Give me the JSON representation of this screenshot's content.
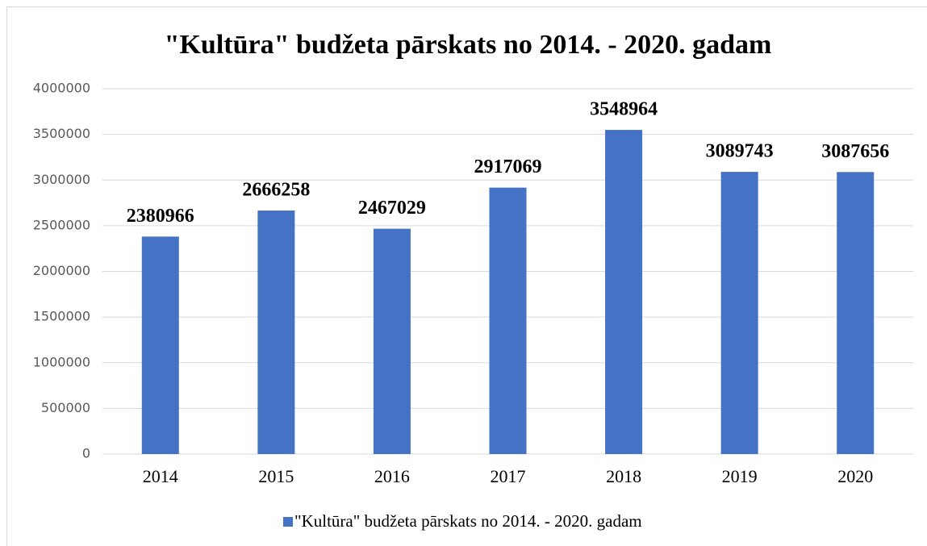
{
  "chart_data": {
    "type": "bar",
    "title": "\"Kultūra\" budžeta pārskats no 2014. - 2020. gadam",
    "categories": [
      "2014",
      "2015",
      "2016",
      "2017",
      "2018",
      "2019",
      "2020"
    ],
    "series": [
      {
        "name": "\"Kultūra\" budžeta pārskats no 2014. - 2020. gadam",
        "color": "#4472c4",
        "values": [
          2380966,
          2666258,
          2467029,
          2917069,
          3548964,
          3089743,
          3087656
        ]
      }
    ],
    "ylim": [
      0,
      4000000
    ],
    "yticks": [
      0,
      500000,
      1000000,
      1500000,
      2000000,
      2500000,
      3000000,
      3500000,
      4000000
    ],
    "grid": true,
    "legend": "bottom"
  }
}
